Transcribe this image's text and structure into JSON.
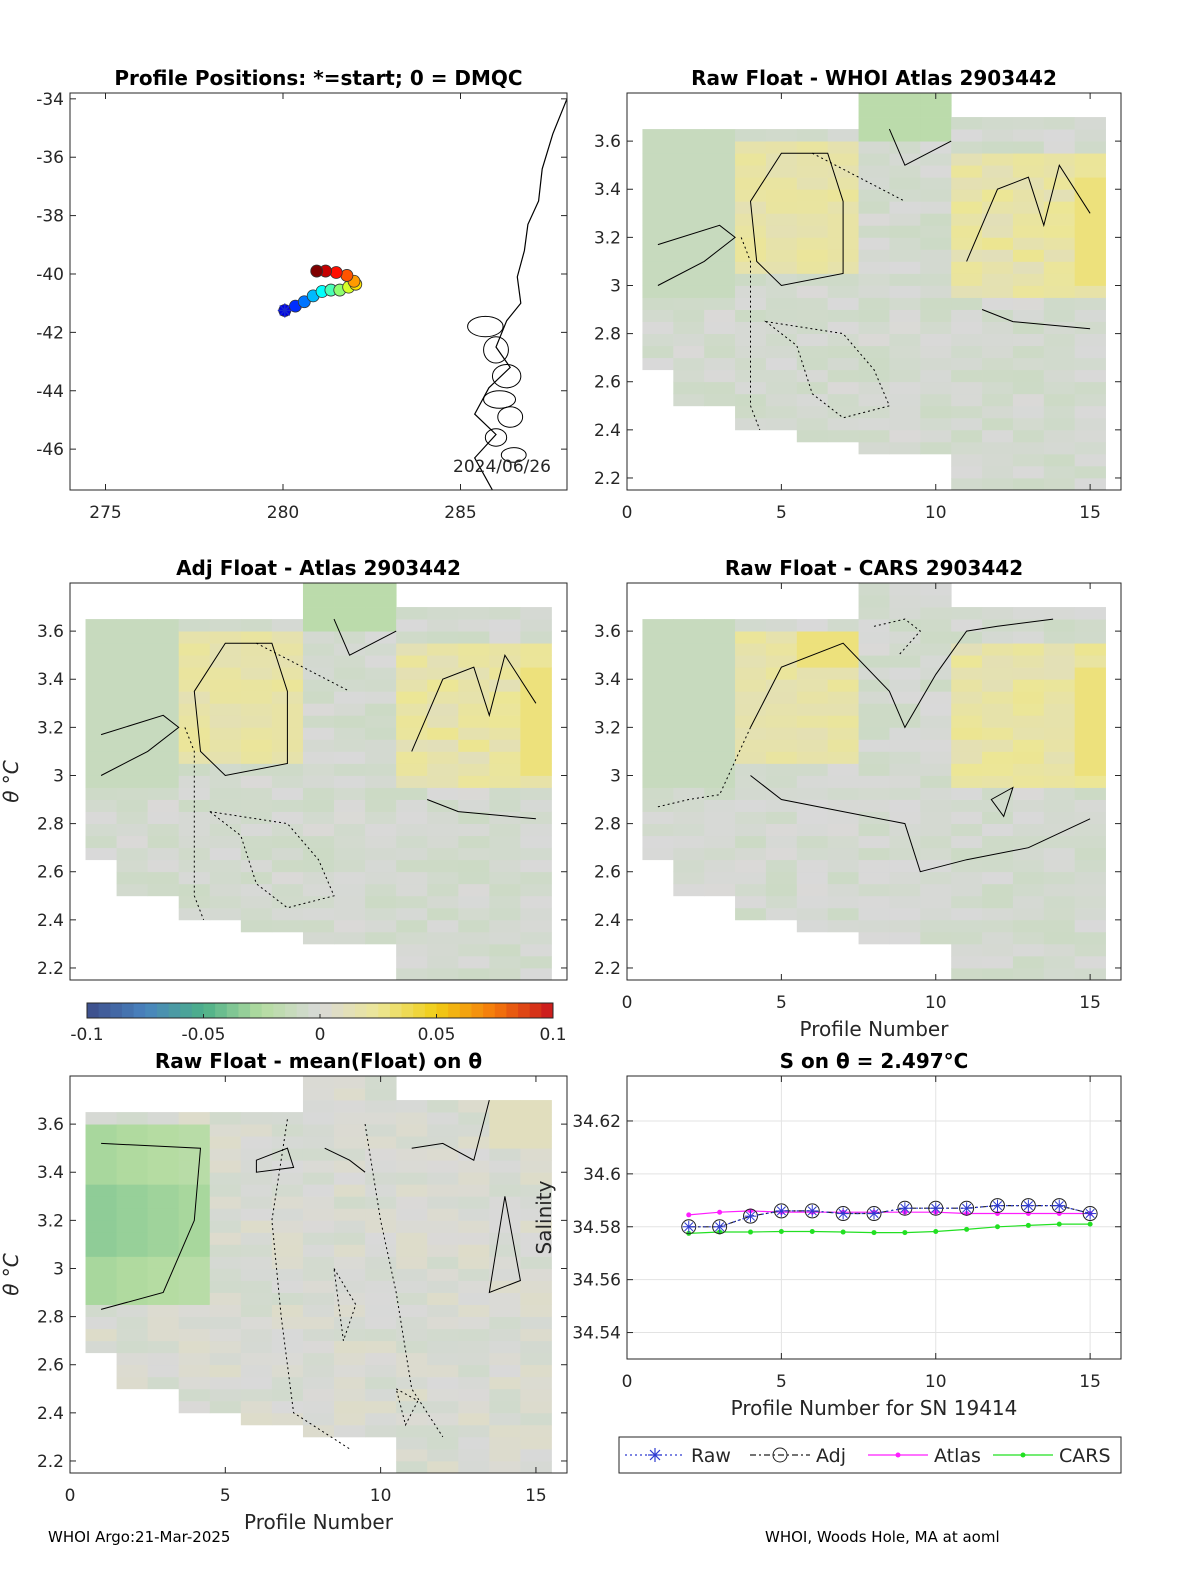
{
  "float_id": "2903442",
  "footer": {
    "left": "WHOI Argo:21-Mar-2025",
    "right": "WHOI, Woods Hole, MA at aoml"
  },
  "colors": {
    "raw": "#2f3bd1",
    "adj": "#222222",
    "atlas": "#ff1dff",
    "cars": "#22e022",
    "land": "#000000",
    "no_data": "#d9d9d9"
  },
  "colorbar": {
    "min": -0.1,
    "max": 0.1,
    "ticks": [
      "-0.1",
      "-0.05",
      "0",
      "0.05",
      "0.1"
    ],
    "colormap": "blue-green-grey-yellow-red diverging"
  },
  "chart_data": [
    {
      "id": "positions",
      "type": "scatter",
      "title": "Profile Positions: *=start; 0 = DMQC",
      "xlim": [
        274,
        288
      ],
      "ylim": [
        -47.4,
        -33.8
      ],
      "xticks": [
        275,
        280,
        285
      ],
      "yticks": [
        -34,
        -36,
        -38,
        -40,
        -42,
        -44,
        -46
      ],
      "annotation": "2024/06/26",
      "points": [
        {
          "lon": 280.05,
          "lat": -41.25
        },
        {
          "lon": 280.35,
          "lat": -41.1
        },
        {
          "lon": 280.6,
          "lat": -40.95
        },
        {
          "lon": 280.85,
          "lat": -40.75
        },
        {
          "lon": 281.1,
          "lat": -40.6
        },
        {
          "lon": 281.35,
          "lat": -40.55
        },
        {
          "lon": 281.6,
          "lat": -40.55
        },
        {
          "lon": 281.85,
          "lat": -40.45
        },
        {
          "lon": 282.05,
          "lat": -40.35
        },
        {
          "lon": 282.0,
          "lat": -40.25
        },
        {
          "lon": 281.8,
          "lat": -40.05
        },
        {
          "lon": 281.5,
          "lat": -39.95
        },
        {
          "lon": 281.2,
          "lat": -39.9
        },
        {
          "lon": 280.95,
          "lat": -39.9
        }
      ]
    },
    {
      "id": "raw-atlas",
      "type": "heatmap",
      "title": "Raw Float - WHOI Atlas  2903442",
      "xlim": [
        0,
        16
      ],
      "ylim": [
        2.15,
        3.8
      ],
      "xticks": [
        0,
        5,
        10,
        15
      ],
      "yticks": [
        2.2,
        2.4,
        2.6,
        2.8,
        3.0,
        3.2,
        3.4,
        3.6
      ],
      "ytick_labels": [
        "2.2",
        "2.4",
        "2.6",
        "2.8",
        "3",
        "3.2",
        "3.4",
        "3.6"
      ],
      "ylabel": "",
      "xlabel": ""
    },
    {
      "id": "adj-atlas",
      "type": "heatmap",
      "title": "Adj Float - Atlas  2903442",
      "xlim": [
        0,
        16
      ],
      "ylim": [
        2.15,
        3.8
      ],
      "yticks": [
        2.2,
        2.4,
        2.6,
        2.8,
        3.0,
        3.2,
        3.4,
        3.6
      ],
      "ytick_labels": [
        "2.2",
        "2.4",
        "2.6",
        "2.8",
        "3",
        "3.2",
        "3.4",
        "3.6"
      ],
      "ylabel": "θ °C",
      "xlabel": ""
    },
    {
      "id": "raw-cars",
      "type": "heatmap",
      "title": "Raw Float - CARS  2903442",
      "xlim": [
        0,
        16
      ],
      "ylim": [
        2.15,
        3.8
      ],
      "xticks": [
        0,
        5,
        10,
        15
      ],
      "yticks": [
        2.2,
        2.4,
        2.6,
        2.8,
        3.0,
        3.2,
        3.4,
        3.6
      ],
      "ytick_labels": [
        "2.2",
        "2.4",
        "2.6",
        "2.8",
        "3",
        "3.2",
        "3.4",
        "3.6"
      ],
      "xlabel": "Profile Number"
    },
    {
      "id": "raw-mean",
      "type": "heatmap",
      "title": "Raw Float - mean(Float) on θ",
      "xlim": [
        0,
        16
      ],
      "ylim": [
        2.15,
        3.8
      ],
      "xticks": [
        0,
        5,
        10,
        15
      ],
      "yticks": [
        2.2,
        2.4,
        2.6,
        2.8,
        3.0,
        3.2,
        3.4,
        3.6
      ],
      "ytick_labels": [
        "2.2",
        "2.4",
        "2.6",
        "2.8",
        "3",
        "3.2",
        "3.4",
        "3.6"
      ],
      "ylabel": "θ °C",
      "xlabel": "Profile Number"
    },
    {
      "id": "salinity",
      "type": "line",
      "title": "S on θ = 2.497°C",
      "xlabel": "Profile Number for SN 19414",
      "ylabel": "Salinity",
      "xlim": [
        0,
        16
      ],
      "ylim": [
        34.53,
        34.637
      ],
      "xticks": [
        0,
        5,
        10,
        15
      ],
      "yticks": [
        34.54,
        34.56,
        34.58,
        34.6,
        34.62
      ],
      "ytick_labels": [
        "34.54",
        "34.56",
        "34.58",
        "34.6",
        "34.62"
      ],
      "grid": true,
      "legend_position": "bottom",
      "x": [
        2,
        3,
        4,
        5,
        6,
        7,
        8,
        9,
        10,
        11,
        12,
        13,
        14,
        15
      ],
      "series": [
        {
          "name": "Raw",
          "values": [
            34.58,
            34.58,
            34.584,
            34.586,
            34.586,
            34.585,
            34.585,
            34.587,
            34.587,
            34.587,
            34.588,
            34.588,
            34.588,
            34.585
          ]
        },
        {
          "name": "Adj",
          "values": [
            34.58,
            34.58,
            34.584,
            34.586,
            34.586,
            34.585,
            34.585,
            34.587,
            34.587,
            34.587,
            34.588,
            34.588,
            34.588,
            34.585
          ]
        },
        {
          "name": "Atlas",
          "values": [
            34.5845,
            34.5855,
            34.586,
            34.5855,
            34.5855,
            34.5855,
            34.5855,
            34.5855,
            34.5855,
            34.585,
            34.585,
            34.585,
            34.585,
            34.585
          ]
        },
        {
          "name": "CARS",
          "values": [
            34.5775,
            34.578,
            34.578,
            34.5782,
            34.5782,
            34.578,
            34.5778,
            34.5778,
            34.5782,
            34.579,
            34.58,
            34.5805,
            34.581,
            34.581
          ]
        }
      ]
    }
  ]
}
